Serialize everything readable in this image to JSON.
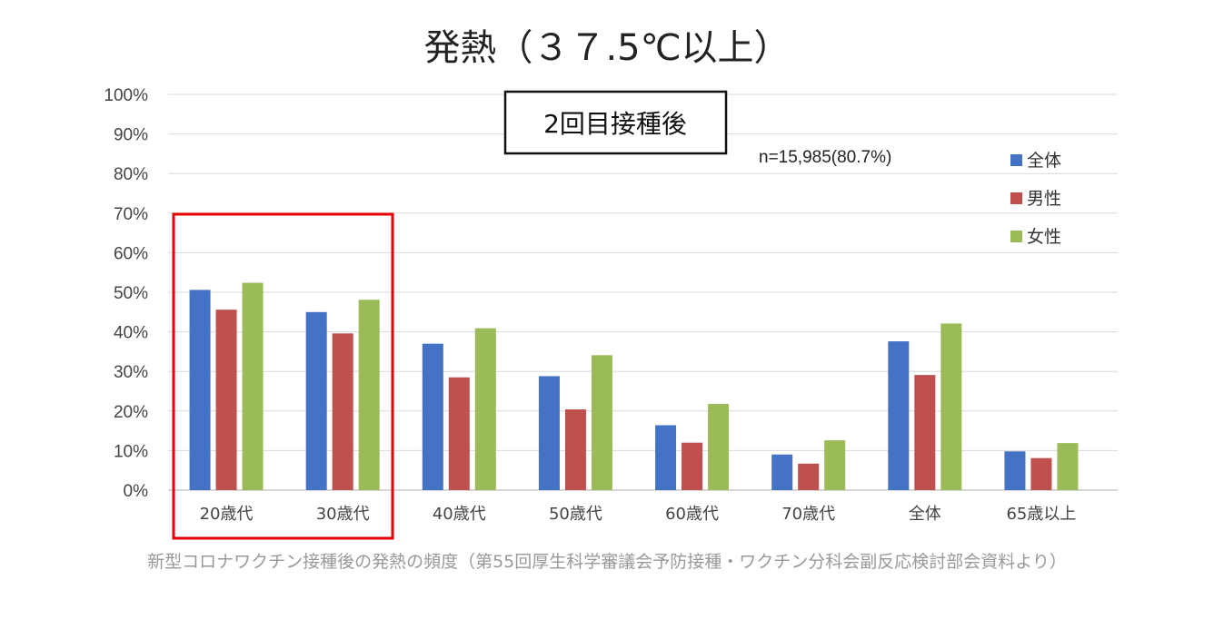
{
  "chart_data": {
    "type": "bar",
    "title": "発熱（３７.5℃以上）",
    "subtitle": "2回目接種後",
    "sample_note": "n=15,985(80.7%)",
    "categories": [
      "20歳代",
      "30歳代",
      "40歳代",
      "50歳代",
      "60歳代",
      "70歳代",
      "全体",
      "65歳以上"
    ],
    "series": [
      {
        "name": "全体",
        "color": "#4472C4",
        "values": [
          50.6,
          45.0,
          37.0,
          28.8,
          16.4,
          9.0,
          37.6,
          9.8
        ]
      },
      {
        "name": "男性",
        "color": "#C0504D",
        "values": [
          45.6,
          39.6,
          28.5,
          20.4,
          12.0,
          6.7,
          29.1,
          8.1
        ]
      },
      {
        "name": "女性",
        "color": "#9BBB59",
        "values": [
          52.4,
          48.1,
          40.9,
          34.1,
          21.8,
          12.6,
          42.1,
          11.9
        ]
      }
    ],
    "y_ticks": [
      "0%",
      "10%",
      "20%",
      "30%",
      "40%",
      "50%",
      "60%",
      "70%",
      "80%",
      "90%",
      "100%"
    ],
    "ylim": [
      0,
      100
    ],
    "grid": true,
    "legend_position": "top-right",
    "highlighted_categories": [
      "20歳代",
      "30歳代"
    ],
    "highlight_color": "#E60000"
  },
  "caption": "新型コロナワクチン接種後の発熱の頻度（第55回厚生科学審議会予防接種・ワクチン分科会副反応検討部会資料より）"
}
